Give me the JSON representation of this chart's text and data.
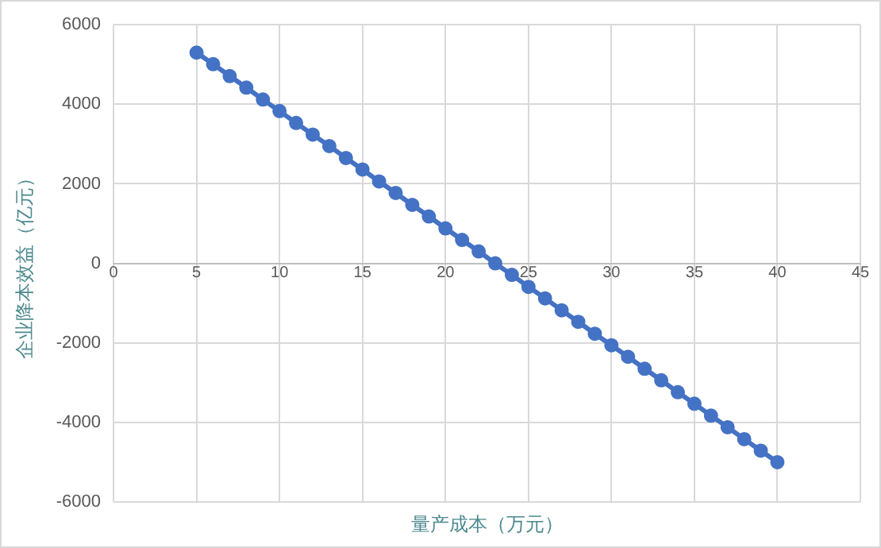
{
  "chart_data": {
    "type": "line",
    "xlabel": "量产成本（万元）",
    "ylabel": "企业降本效益（亿元）",
    "x": [
      5,
      6,
      7,
      8,
      9,
      10,
      11,
      12,
      13,
      14,
      15,
      16,
      17,
      18,
      19,
      20,
      21,
      22,
      23,
      24,
      25,
      26,
      27,
      28,
      29,
      30,
      31,
      32,
      33,
      34,
      35,
      36,
      37,
      38,
      39,
      40
    ],
    "series": [
      {
        "color": "#4472c4",
        "values": [
          5300,
          5010,
          4710,
          4420,
          4120,
          3830,
          3530,
          3240,
          2950,
          2650,
          2360,
          2060,
          1770,
          1470,
          1180,
          880,
          590,
          300,
          0,
          -290,
          -590,
          -880,
          -1180,
          -1470,
          -1770,
          -2060,
          -2350,
          -2650,
          -2940,
          -3240,
          -3530,
          -3830,
          -4120,
          -4420,
          -4710,
          -5000
        ]
      }
    ],
    "xlim": [
      0,
      45
    ],
    "xticks": [
      0,
      5,
      10,
      15,
      20,
      25,
      30,
      35,
      40,
      45
    ],
    "ylim": [
      -6000,
      6000
    ],
    "yticks": [
      -6000,
      -4000,
      -2000,
      0,
      2000,
      4000,
      6000
    ],
    "grid": true,
    "legend": false,
    "marker": "circle",
    "line_style": "solid"
  }
}
